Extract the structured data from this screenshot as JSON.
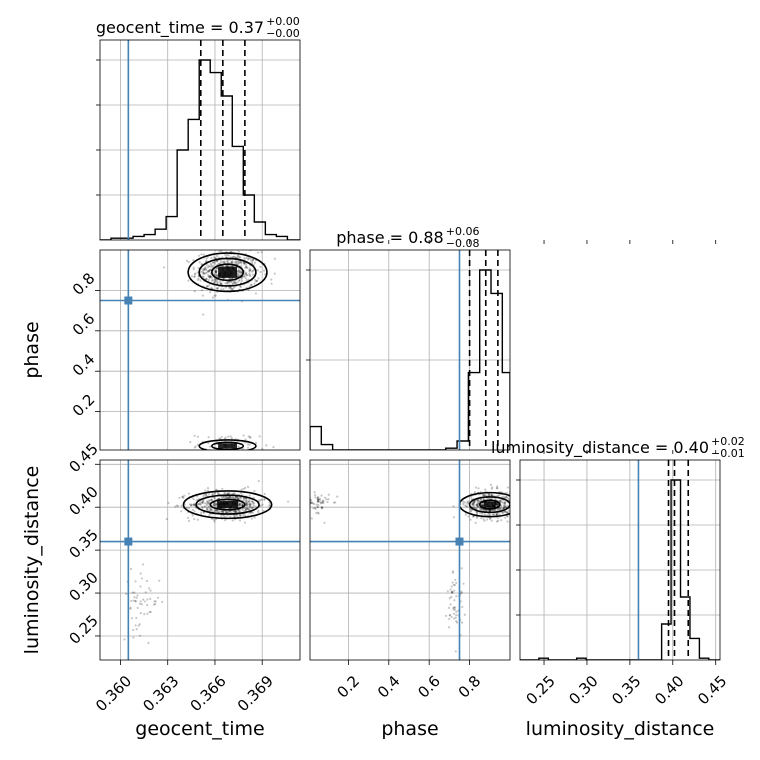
{
  "colors": {
    "truth": "#4682b4",
    "line": "#000000",
    "grid": "#b0b0b0",
    "sample": "#000000"
  },
  "chart_data": {
    "type": "corner",
    "parameters": [
      "geocent_time",
      "phase",
      "luminosity_distance"
    ],
    "truths": {
      "geocent_time": 0.3605,
      "phase": 0.75,
      "luminosity_distance": 0.36
    },
    "titles": [
      {
        "param": "geocent_time",
        "label": "geocent_time = 0.37",
        "sup": "+0.00",
        "sub": "−0.00"
      },
      {
        "param": "phase",
        "label": "phase = 0.88",
        "sup": "+0.06",
        "sub": "−0.08"
      },
      {
        "param": "luminosity_distance",
        "label": "luminosity_distance = 0.40",
        "sup": "+0.02",
        "sub": "−0.01"
      }
    ],
    "axis_labels": {
      "x": [
        "geocent_time",
        "phase",
        "luminosity_distance"
      ],
      "y": [
        "phase",
        "luminosity_distance"
      ]
    },
    "ranges": {
      "geocent_time": [
        0.3587,
        0.3714
      ],
      "phase": [
        0.01,
        1.0
      ],
      "luminosity_distance": [
        0.222,
        0.455
      ]
    },
    "ticks": {
      "geocent_time": {
        "values": [
          0.36,
          0.363,
          0.366,
          0.369
        ],
        "labels": [
          "0.360",
          "0.363",
          "0.366",
          "0.369"
        ]
      },
      "phase": {
        "values": [
          0.2,
          0.4,
          0.6,
          0.8
        ],
        "labels": [
          "0.2",
          "0.4",
          "0.6",
          "0.8"
        ]
      },
      "luminosity_distance": {
        "values": [
          0.25,
          0.3,
          0.35,
          0.4,
          0.45
        ],
        "labels": [
          "0.25",
          "0.30",
          "0.35",
          "0.40",
          "0.45"
        ]
      }
    },
    "diag_ticks": {
      "geocent_time": 4,
      "phase": 2,
      "luminosity_distance": 4
    },
    "quantiles": {
      "geocent_time": [
        0.3651,
        0.3665,
        0.3679
      ],
      "phase": [
        0.8,
        0.88,
        0.94
      ],
      "luminosity_distance": [
        0.395,
        0.402,
        0.418
      ]
    },
    "histograms": {
      "geocent_time": {
        "edges": [
          0.3587,
          0.3594,
          0.3601,
          0.3608,
          0.3615,
          0.3622,
          0.3629,
          0.3636,
          0.3643,
          0.365,
          0.3657,
          0.3664,
          0.3671,
          0.3678,
          0.3685,
          0.3692,
          0.3699,
          0.3706,
          0.3714
        ],
        "counts": [
          0,
          1,
          1,
          2,
          3,
          6,
          13,
          50,
          67,
          100,
          93,
          80,
          52,
          25,
          10,
          3,
          2,
          0
        ]
      },
      "phase": {
        "edges": [
          0.01,
          0.066,
          0.122,
          0.178,
          0.234,
          0.29,
          0.346,
          0.402,
          0.458,
          0.514,
          0.57,
          0.626,
          0.682,
          0.738,
          0.794,
          0.85,
          0.906,
          0.962,
          1.0
        ],
        "counts": [
          13,
          3,
          0,
          0,
          0,
          0,
          0,
          0,
          0,
          0,
          0,
          0,
          1,
          5,
          43,
          100,
          87,
          43
        ]
      },
      "luminosity_distance": {
        "edges": [
          0.222,
          0.233,
          0.244,
          0.255,
          0.266,
          0.277,
          0.288,
          0.299,
          0.31,
          0.321,
          0.332,
          0.343,
          0.354,
          0.365,
          0.376,
          0.387,
          0.398,
          0.409,
          0.42,
          0.431,
          0.442,
          0.455
        ],
        "counts": [
          0,
          0,
          1,
          0,
          0,
          0,
          1,
          0,
          0,
          0,
          0,
          0,
          0,
          0,
          0,
          20,
          100,
          35,
          12,
          1,
          0
        ]
      }
    },
    "clusters": [
      {
        "x": "geocent_time",
        "y": "phase",
        "cx": 0.3668,
        "cy": 0.89,
        "sx": 0.001,
        "sy": 0.05,
        "n": 600
      },
      {
        "x": "geocent_time",
        "y": "phase",
        "cx": 0.3668,
        "cy": 0.03,
        "sx": 0.001,
        "sy": 0.03,
        "n": 90
      },
      {
        "x": "geocent_time",
        "y": "luminosity_distance",
        "cx": 0.3668,
        "cy": 0.403,
        "sx": 0.0012,
        "sy": 0.008,
        "n": 600
      },
      {
        "x": "geocent_time",
        "y": "luminosity_distance",
        "cx": 0.3613,
        "cy": 0.29,
        "sx": 0.0006,
        "sy": 0.018,
        "n": 55
      },
      {
        "x": "phase",
        "y": "luminosity_distance",
        "cx": 0.9,
        "cy": 0.403,
        "sx": 0.06,
        "sy": 0.008,
        "n": 500
      },
      {
        "x": "phase",
        "y": "luminosity_distance",
        "cx": 0.03,
        "cy": 0.403,
        "sx": 0.04,
        "sy": 0.008,
        "n": 90
      },
      {
        "x": "phase",
        "y": "luminosity_distance",
        "cx": 0.73,
        "cy": 0.29,
        "sx": 0.02,
        "sy": 0.02,
        "n": 55
      }
    ],
    "contours": [
      {
        "x": "geocent_time",
        "y": "phase",
        "cx": 0.3668,
        "cy": 0.89,
        "levels": [
          [
            0.0025,
            0.095
          ],
          [
            0.0018,
            0.068
          ],
          [
            0.001,
            0.04
          ]
        ]
      },
      {
        "x": "geocent_time",
        "y": "phase",
        "cx": 0.3668,
        "cy": 0.03,
        "levels": [
          [
            0.0018,
            0.03
          ],
          [
            0.001,
            0.018
          ]
        ]
      },
      {
        "x": "geocent_time",
        "y": "luminosity_distance",
        "cx": 0.3668,
        "cy": 0.403,
        "levels": [
          [
            0.0028,
            0.016
          ],
          [
            0.002,
            0.011
          ],
          [
            0.0011,
            0.006
          ]
        ]
      },
      {
        "x": "phase",
        "y": "luminosity_distance",
        "cx": 0.9,
        "cy": 0.403,
        "levels": [
          [
            0.15,
            0.014
          ],
          [
            0.1,
            0.009
          ],
          [
            0.05,
            0.005
          ]
        ]
      }
    ],
    "grid": true
  }
}
